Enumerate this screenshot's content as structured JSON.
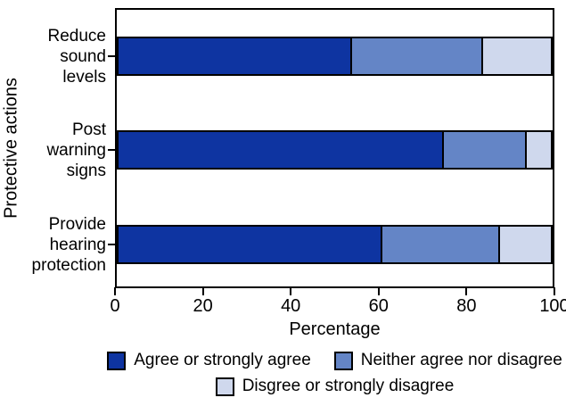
{
  "chart_data": {
    "type": "bar",
    "orientation": "horizontal",
    "stacked": true,
    "title": "",
    "xlabel": "Percentage",
    "ylabel": "Protective actions",
    "xlim": [
      0,
      100
    ],
    "xticks": [
      0,
      20,
      40,
      60,
      80,
      100
    ],
    "grid": false,
    "legend_position": "bottom",
    "categories": [
      "Reduce sound levels",
      "Post warning signs",
      "Provide hearing protection"
    ],
    "category_label_lines": [
      [
        "Reduce",
        "sound",
        "levels"
      ],
      [
        "Post",
        "warning",
        "signs"
      ],
      [
        "Provide",
        "hearing",
        "protection"
      ]
    ],
    "series": [
      {
        "name": "Agree or strongly agree",
        "color": "#0E34A1",
        "values": [
          54,
          75,
          61
        ]
      },
      {
        "name": "Neither agree nor disagree",
        "color": "#6485C6",
        "values": [
          30,
          19,
          27
        ]
      },
      {
        "name": "Disgree or strongly disagree",
        "color": "#CFD8ED",
        "values": [
          16,
          6,
          12
        ]
      }
    ],
    "colors": {
      "axis": "#000000",
      "bar_border": "#000000",
      "text": "#000000",
      "background": "#ffffff"
    }
  },
  "legend": {
    "rows": [
      [
        0,
        1
      ],
      [
        2
      ]
    ]
  }
}
